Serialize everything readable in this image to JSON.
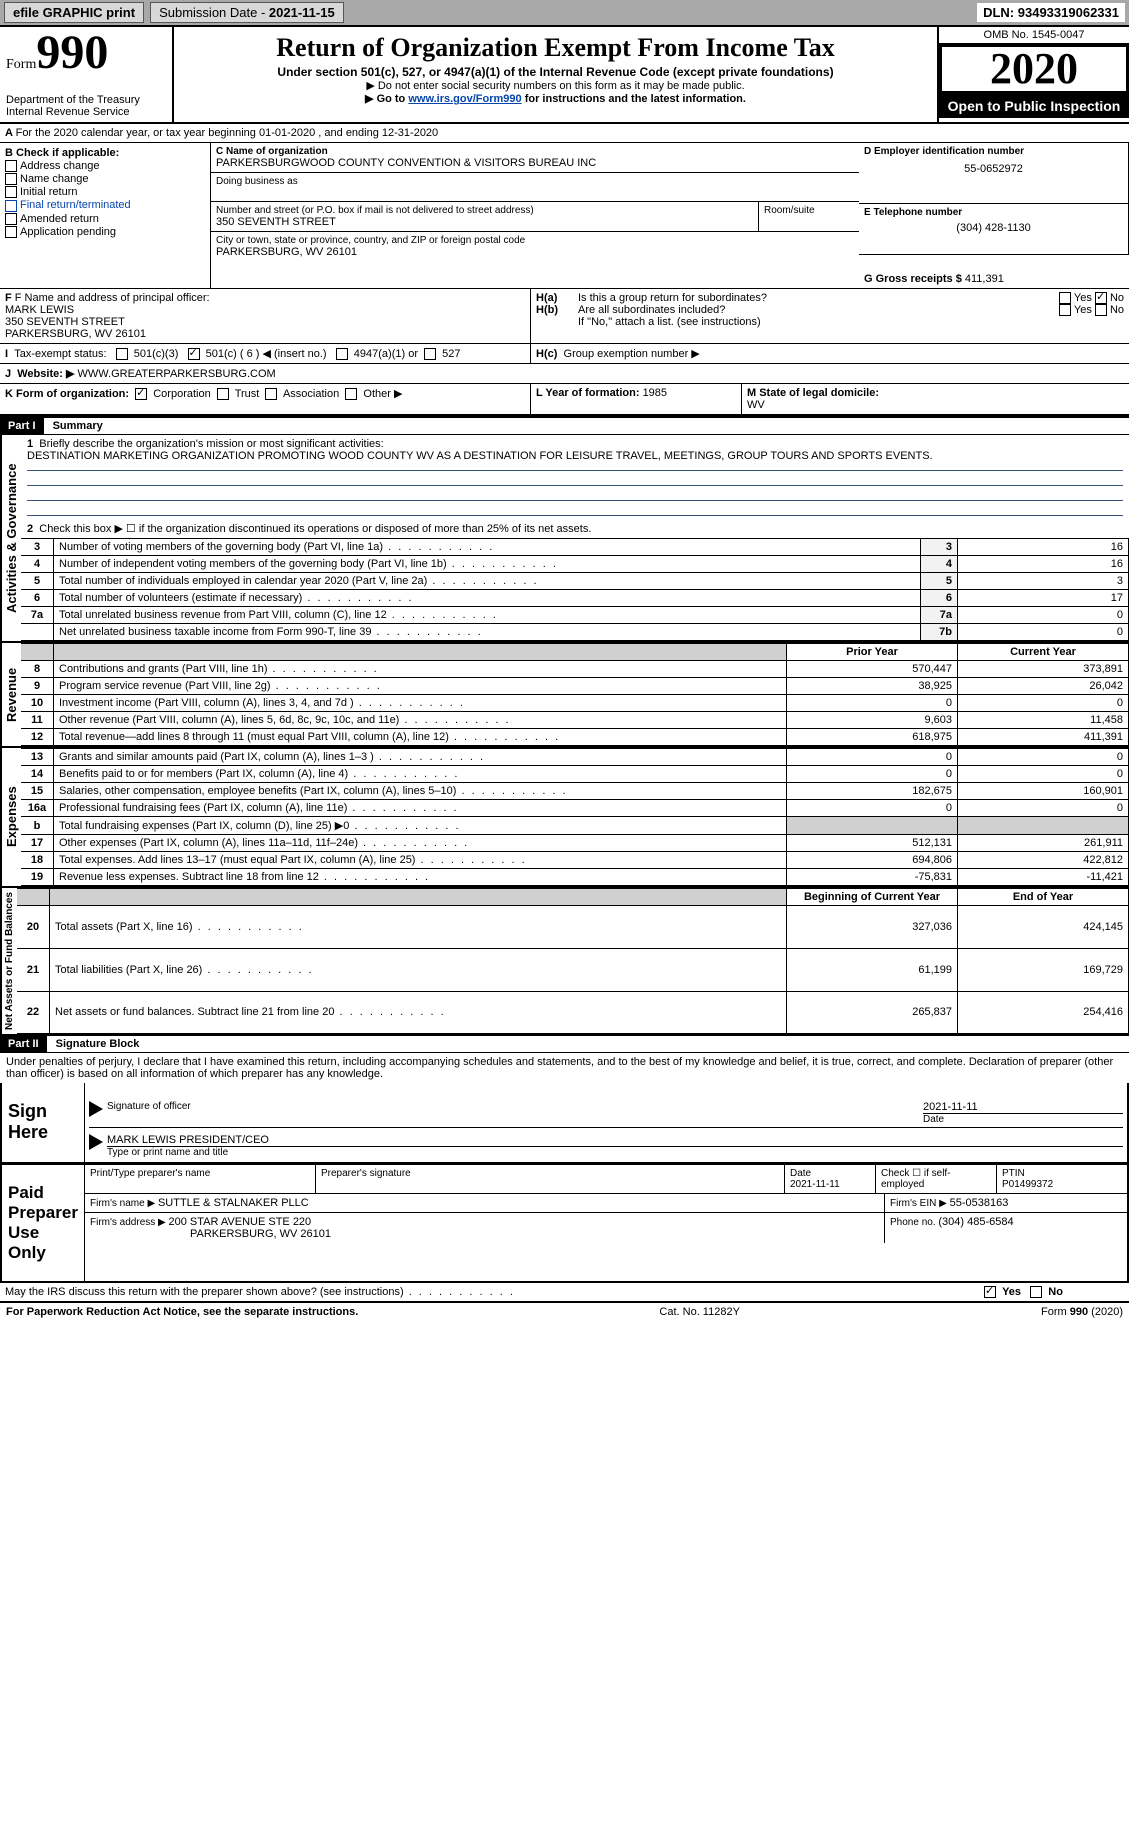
{
  "topbar": {
    "efile": "efile GRAPHIC print",
    "subdate_label": "Submission Date - ",
    "subdate": "2021-11-15",
    "dln_label": "DLN: ",
    "dln": "93493319062331"
  },
  "header": {
    "form_prefix": "Form",
    "form_no": "990",
    "dept": "Department of the Treasury",
    "irs": "Internal Revenue Service",
    "title": "Return of Organization Exempt From Income Tax",
    "sub1": "Under section 501(c), 527, or 4947(a)(1) of the Internal Revenue Code (except private foundations)",
    "sub2": "▶ Do not enter social security numbers on this form as it may be made public.",
    "sub3a": "▶ Go to ",
    "sub3link": "www.irs.gov/Form990",
    "sub3b": " for instructions and the latest information.",
    "omb": "OMB No. 1545-0047",
    "year": "2020",
    "open": "Open to Public Inspection"
  },
  "A": {
    "text": "For the 2020 calendar year, or tax year beginning 01-01-2020   , and ending 12-31-2020"
  },
  "B": {
    "label": "B Check if applicable:",
    "items": [
      "Address change",
      "Name change",
      "Initial return",
      "Final return/terminated",
      "Amended return",
      "Application pending"
    ]
  },
  "C": {
    "name_label": "C Name of organization",
    "name": "PARKERSBURGWOOD COUNTY CONVENTION & VISITORS BUREAU INC",
    "dba_label": "Doing business as",
    "addr_label": "Number and street (or P.O. box if mail is not delivered to street address)",
    "room_label": "Room/suite",
    "addr": "350 SEVENTH STREET",
    "city_label": "City or town, state or province, country, and ZIP or foreign postal code",
    "city": "PARKERSBURG, WV  26101"
  },
  "D": {
    "label": "D Employer identification number",
    "value": "55-0652972"
  },
  "E": {
    "label": "E Telephone number",
    "value": "(304) 428-1130"
  },
  "G": {
    "label": "G Gross receipts $ ",
    "value": "411,391"
  },
  "F": {
    "label": "F Name and address of principal officer:",
    "name": "MARK LEWIS",
    "addr1": "350 SEVENTH STREET",
    "addr2": "PARKERSBURG, WV  26101"
  },
  "H": {
    "a": "Is this a group return for subordinates?",
    "b": "Are all subordinates included?",
    "note": "If \"No,\" attach a list. (see instructions)",
    "c": "Group exemption number ▶",
    "yes": "Yes",
    "no": "No"
  },
  "I": {
    "label": "Tax-exempt status:",
    "o1": "501(c)(3)",
    "o2": "501(c) ( 6 ) ◀ (insert no.)",
    "o3": "4947(a)(1) or",
    "o4": "527"
  },
  "J": {
    "label": "Website: ▶",
    "value": "WWW.GREATERPARKERSBURG.COM"
  },
  "K": {
    "label": "K Form of organization:",
    "o1": "Corporation",
    "o2": "Trust",
    "o3": "Association",
    "o4": "Other ▶"
  },
  "L": {
    "label": "L Year of formation: ",
    "value": "1985"
  },
  "M": {
    "label": "M State of legal domicile:",
    "value": "WV"
  },
  "part1": {
    "hdr": "Part I",
    "title": "Summary",
    "q1": "Briefly describe the organization's mission or most significant activities:",
    "mission": "DESTINATION MARKETING ORGANIZATION PROMOTING WOOD COUNTY WV AS A DESTINATION FOR LEISURE TRAVEL, MEETINGS, GROUP TOURS AND SPORTS EVENTS.",
    "q2": "Check this box ▶ ☐  if the organization discontinued its operations or disposed of more than 25% of its net assets.",
    "side_gov": "Activities & Governance",
    "side_rev": "Revenue",
    "side_exp": "Expenses",
    "side_na": "Net Assets or Fund Balances",
    "prior": "Prior Year",
    "curr": "Current Year",
    "beg": "Beginning of Current Year",
    "end": "End of Year",
    "lines_gov": [
      {
        "n": "3",
        "t": "Number of voting members of the governing body (Part VI, line 1a)",
        "i": "3",
        "v": "16"
      },
      {
        "n": "4",
        "t": "Number of independent voting members of the governing body (Part VI, line 1b)",
        "i": "4",
        "v": "16"
      },
      {
        "n": "5",
        "t": "Total number of individuals employed in calendar year 2020 (Part V, line 2a)",
        "i": "5",
        "v": "3"
      },
      {
        "n": "6",
        "t": "Total number of volunteers (estimate if necessary)",
        "i": "6",
        "v": "17"
      },
      {
        "n": "7a",
        "t": "Total unrelated business revenue from Part VIII, column (C), line 12",
        "i": "7a",
        "v": "0"
      },
      {
        "n": "",
        "t": "Net unrelated business taxable income from Form 990-T, line 39",
        "i": "7b",
        "v": "0"
      }
    ],
    "lines_rev": [
      {
        "n": "8",
        "t": "Contributions and grants (Part VIII, line 1h)",
        "p": "570,447",
        "c": "373,891"
      },
      {
        "n": "9",
        "t": "Program service revenue (Part VIII, line 2g)",
        "p": "38,925",
        "c": "26,042"
      },
      {
        "n": "10",
        "t": "Investment income (Part VIII, column (A), lines 3, 4, and 7d )",
        "p": "0",
        "c": "0"
      },
      {
        "n": "11",
        "t": "Other revenue (Part VIII, column (A), lines 5, 6d, 8c, 9c, 10c, and 11e)",
        "p": "9,603",
        "c": "11,458"
      },
      {
        "n": "12",
        "t": "Total revenue—add lines 8 through 11 (must equal Part VIII, column (A), line 12)",
        "p": "618,975",
        "c": "411,391"
      }
    ],
    "lines_exp": [
      {
        "n": "13",
        "t": "Grants and similar amounts paid (Part IX, column (A), lines 1–3 )",
        "p": "0",
        "c": "0"
      },
      {
        "n": "14",
        "t": "Benefits paid to or for members (Part IX, column (A), line 4)",
        "p": "0",
        "c": "0"
      },
      {
        "n": "15",
        "t": "Salaries, other compensation, employee benefits (Part IX, column (A), lines 5–10)",
        "p": "182,675",
        "c": "160,901"
      },
      {
        "n": "16a",
        "t": "Professional fundraising fees (Part IX, column (A), line 11e)",
        "p": "0",
        "c": "0"
      },
      {
        "n": "b",
        "t": "Total fundraising expenses (Part IX, column (D), line 25) ▶0",
        "p": "",
        "c": ""
      },
      {
        "n": "17",
        "t": "Other expenses (Part IX, column (A), lines 11a–11d, 11f–24e)",
        "p": "512,131",
        "c": "261,911"
      },
      {
        "n": "18",
        "t": "Total expenses. Add lines 13–17 (must equal Part IX, column (A), line 25)",
        "p": "694,806",
        "c": "422,812"
      },
      {
        "n": "19",
        "t": "Revenue less expenses. Subtract line 18 from line 12",
        "p": "-75,831",
        "c": "-11,421"
      }
    ],
    "lines_na": [
      {
        "n": "20",
        "t": "Total assets (Part X, line 16)",
        "p": "327,036",
        "c": "424,145"
      },
      {
        "n": "21",
        "t": "Total liabilities (Part X, line 26)",
        "p": "61,199",
        "c": "169,729"
      },
      {
        "n": "22",
        "t": "Net assets or fund balances. Subtract line 21 from line 20",
        "p": "265,837",
        "c": "254,416"
      }
    ]
  },
  "part2": {
    "hdr": "Part II",
    "title": "Signature Block",
    "decl": "Under penalties of perjury, I declare that I have examined this return, including accompanying schedules and statements, and to the best of my knowledge and belief, it is true, correct, and complete. Declaration of preparer (other than officer) is based on all information of which preparer has any knowledge.",
    "sign_here": "Sign Here",
    "sig_officer": "Signature of officer",
    "sig_date": "2021-11-11",
    "date_label": "Date",
    "officer_name": "MARK LEWIS  PRESIDENT/CEO",
    "officer_sub": "Type or print name and title",
    "paid": "Paid Preparer Use Only",
    "prep_name_label": "Print/Type preparer's name",
    "prep_sig_label": "Preparer's signature",
    "prep_date": "2021-11-11",
    "self_emp": "Check ☐ if self-employed",
    "ptin_label": "PTIN",
    "ptin": "P01499372",
    "firm_name_label": "Firm's name    ▶ ",
    "firm_name": "SUTTLE & STALNAKER PLLC",
    "firm_ein_label": "Firm's EIN ▶ ",
    "firm_ein": "55-0538163",
    "firm_addr_label": "Firm's address ▶ ",
    "firm_addr1": "200 STAR AVENUE STE 220",
    "firm_addr2": "PARKERSBURG, WV  26101",
    "phone_label": "Phone no. ",
    "phone": "(304) 485-6584",
    "discuss": "May the IRS discuss this return with the preparer shown above? (see instructions)"
  },
  "footer": {
    "left": "For Paperwork Reduction Act Notice, see the separate instructions.",
    "mid": "Cat. No. 11282Y",
    "right": "Form 990 (2020)"
  },
  "colors": {
    "link": "#0645ad",
    "topbar": "#a8a8a8",
    "black": "#000000"
  }
}
